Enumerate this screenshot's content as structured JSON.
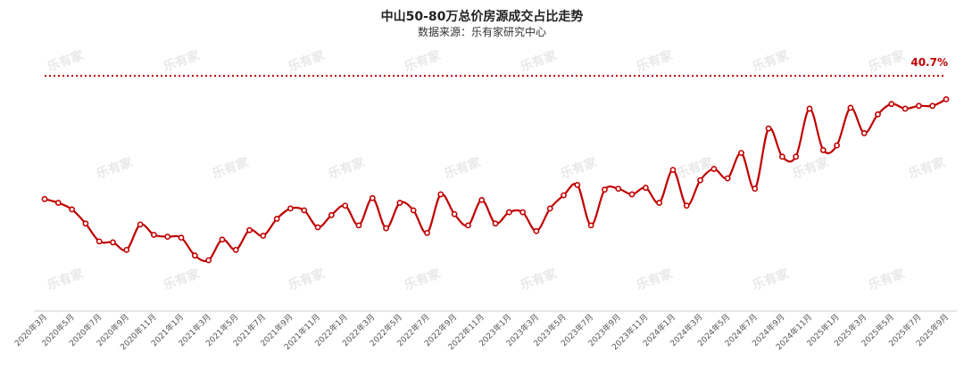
{
  "chart_data": {
    "type": "line",
    "title": "中山50-80万总价房源成交占比走势",
    "subtitle": "数据来源：乐有家研究中心",
    "watermark": "乐有家",
    "series_color": "#c00000",
    "categories": [
      "2020年3月",
      "2020年4月",
      "2020年5月",
      "2020年6月",
      "2020年7月",
      "2020年8月",
      "2020年9月",
      "2020年10月",
      "2020年11月",
      "2020年12月",
      "2021年1月",
      "2021年2月",
      "2021年3月",
      "2021年4月",
      "2021年5月",
      "2021年6月",
      "2021年7月",
      "2021年8月",
      "2021年9月",
      "2021年10月",
      "2021年11月",
      "2021年12月",
      "2022年1月",
      "2022年2月",
      "2022年3月",
      "2022年4月",
      "2022年5月",
      "2022年6月",
      "2022年7月",
      "2022年8月",
      "2022年9月",
      "2022年10月",
      "2022年11月",
      "2022年12月",
      "2023年1月",
      "2023年2月",
      "2023年3月",
      "2023年4月",
      "2023年5月",
      "2023年6月",
      "2023年7月",
      "2023年8月",
      "2023年9月",
      "2023年10月",
      "2023年11月",
      "2023年12月",
      "2024年1月",
      "2024年2月",
      "2024年3月",
      "2024年4月",
      "2024年5月",
      "2024年6月",
      "2024年7月",
      "2024年8月",
      "2024年9月",
      "2024年10月",
      "2024年11月",
      "2024年12月",
      "2025年1月",
      "2025年2月",
      "2025年3月",
      "2025年4月",
      "2025年5月",
      "2025年6月",
      "2025年7月",
      "2025年8月",
      "2025年9月"
    ],
    "tick_labels": [
      "2020年3月",
      "2020年5月",
      "2020年7月",
      "2020年9月",
      "2020年11月",
      "2021年1月",
      "2021年3月",
      "2021年5月",
      "2021年7月",
      "2021年9月",
      "2021年11月",
      "2022年1月",
      "2022年3月",
      "2022年5月",
      "2022年7月",
      "2022年9月",
      "2022年11月",
      "2023年1月",
      "2023年3月",
      "2023年5月",
      "2023年7月",
      "2023年9月",
      "2023年11月",
      "2024年1月",
      "2024年3月",
      "2024年5月",
      "2024年7月",
      "2024年9月",
      "2024年11月",
      "2025年1月",
      "2025年3月",
      "2025年5月",
      "2025年7月",
      "2025年9月"
    ],
    "values": [
      21.9,
      21.5,
      20.8,
      19.3,
      17.4,
      17.3,
      16.5,
      19.2,
      18.1,
      17.9,
      17.8,
      15.9,
      15.4,
      17.6,
      16.5,
      18.6,
      18.0,
      19.8,
      20.9,
      20.7,
      18.9,
      20.2,
      21.2,
      19.1,
      22.0,
      18.8,
      21.5,
      20.7,
      18.3,
      22.4,
      20.3,
      19.1,
      21.8,
      19.3,
      20.5,
      20.5,
      18.5,
      20.9,
      22.3,
      23.4,
      19.1,
      22.9,
      23.0,
      22.4,
      23.1,
      21.5,
      25.0,
      21.2,
      23.9,
      25.1,
      24.1,
      26.8,
      23.0,
      29.4,
      26.4,
      26.4,
      31.5,
      27.1,
      27.6,
      31.6,
      28.9,
      30.9,
      32.0,
      31.5,
      31.8,
      31.8,
      32.5
    ],
    "reference_label": "40.7%",
    "ylim": [
      10,
      35
    ],
    "grid": false
  }
}
